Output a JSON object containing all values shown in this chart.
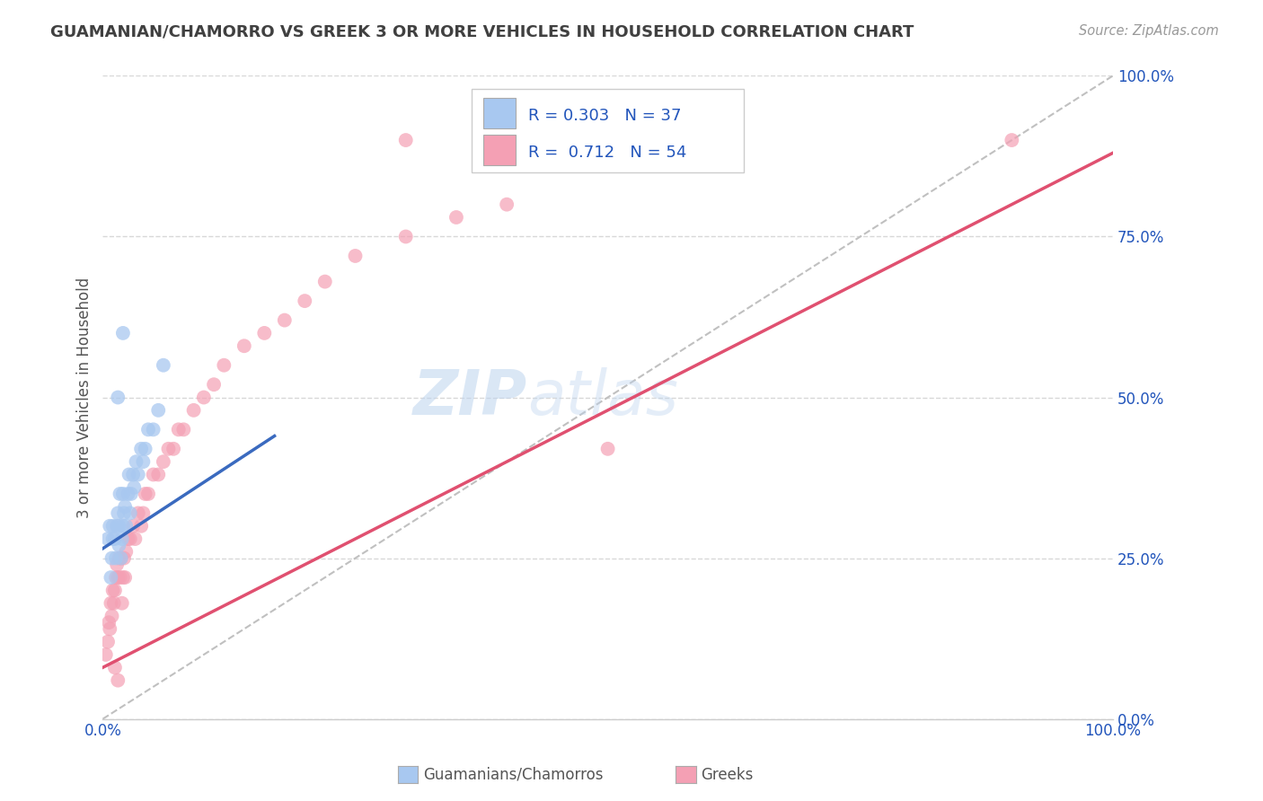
{
  "title": "GUAMANIAN/CHAMORRO VS GREEK 3 OR MORE VEHICLES IN HOUSEHOLD CORRELATION CHART",
  "source": "Source: ZipAtlas.com",
  "ylabel": "3 or more Vehicles in Household",
  "xlim": [
    0.0,
    1.0
  ],
  "ylim": [
    0.0,
    1.0
  ],
  "yticks": [
    0.0,
    0.25,
    0.5,
    0.75,
    1.0
  ],
  "ytick_labels": [
    "0.0%",
    "25.0%",
    "50.0%",
    "75.0%",
    "100.0%"
  ],
  "xtick_labels": [
    "0.0%",
    "100.0%"
  ],
  "watermark": "ZIPatlas",
  "legend_labels": [
    "Guamanians/Chamorros",
    "Greeks"
  ],
  "R_guam": 0.303,
  "N_guam": 37,
  "R_greek": 0.712,
  "N_greek": 54,
  "guam_color": "#a8c8f0",
  "greek_color": "#f4a0b4",
  "guam_line_color": "#3a6abf",
  "greek_line_color": "#e05070",
  "diag_color": "#c0c0c0",
  "background_color": "#ffffff",
  "grid_color": "#d8d8d8",
  "title_color": "#404040",
  "legend_text_color": "#2255bb",
  "guam_scatter_x": [
    0.005,
    0.007,
    0.008,
    0.009,
    0.01,
    0.01,
    0.012,
    0.013,
    0.014,
    0.015,
    0.016,
    0.016,
    0.017,
    0.018,
    0.019,
    0.02,
    0.02,
    0.021,
    0.022,
    0.023,
    0.025,
    0.026,
    0.027,
    0.028,
    0.03,
    0.031,
    0.033,
    0.035,
    0.038,
    0.04,
    0.042,
    0.045,
    0.05,
    0.055,
    0.06,
    0.015,
    0.02
  ],
  "guam_scatter_y": [
    0.28,
    0.3,
    0.22,
    0.25,
    0.28,
    0.3,
    0.28,
    0.25,
    0.3,
    0.32,
    0.27,
    0.3,
    0.35,
    0.25,
    0.28,
    0.3,
    0.35,
    0.32,
    0.33,
    0.3,
    0.35,
    0.38,
    0.32,
    0.35,
    0.38,
    0.36,
    0.4,
    0.38,
    0.42,
    0.4,
    0.42,
    0.45,
    0.45,
    0.48,
    0.55,
    0.5,
    0.6
  ],
  "greek_scatter_x": [
    0.003,
    0.005,
    0.006,
    0.007,
    0.008,
    0.009,
    0.01,
    0.011,
    0.012,
    0.013,
    0.014,
    0.015,
    0.016,
    0.017,
    0.018,
    0.019,
    0.02,
    0.021,
    0.022,
    0.023,
    0.025,
    0.027,
    0.03,
    0.032,
    0.035,
    0.038,
    0.04,
    0.042,
    0.045,
    0.05,
    0.055,
    0.06,
    0.065,
    0.07,
    0.075,
    0.08,
    0.09,
    0.1,
    0.11,
    0.12,
    0.14,
    0.16,
    0.18,
    0.2,
    0.22,
    0.25,
    0.3,
    0.35,
    0.4,
    0.5,
    0.012,
    0.015,
    0.3,
    0.9
  ],
  "greek_scatter_y": [
    0.1,
    0.12,
    0.15,
    0.14,
    0.18,
    0.16,
    0.2,
    0.18,
    0.2,
    0.22,
    0.24,
    0.22,
    0.25,
    0.22,
    0.25,
    0.18,
    0.22,
    0.25,
    0.22,
    0.26,
    0.28,
    0.28,
    0.3,
    0.28,
    0.32,
    0.3,
    0.32,
    0.35,
    0.35,
    0.38,
    0.38,
    0.4,
    0.42,
    0.42,
    0.45,
    0.45,
    0.48,
    0.5,
    0.52,
    0.55,
    0.58,
    0.6,
    0.62,
    0.65,
    0.68,
    0.72,
    0.75,
    0.78,
    0.8,
    0.42,
    0.08,
    0.06,
    0.9,
    0.9
  ],
  "guam_line_x": [
    0.0,
    0.17
  ],
  "guam_line_y": [
    0.265,
    0.44
  ],
  "greek_line_x": [
    0.0,
    1.0
  ],
  "greek_line_y": [
    0.08,
    0.88
  ]
}
